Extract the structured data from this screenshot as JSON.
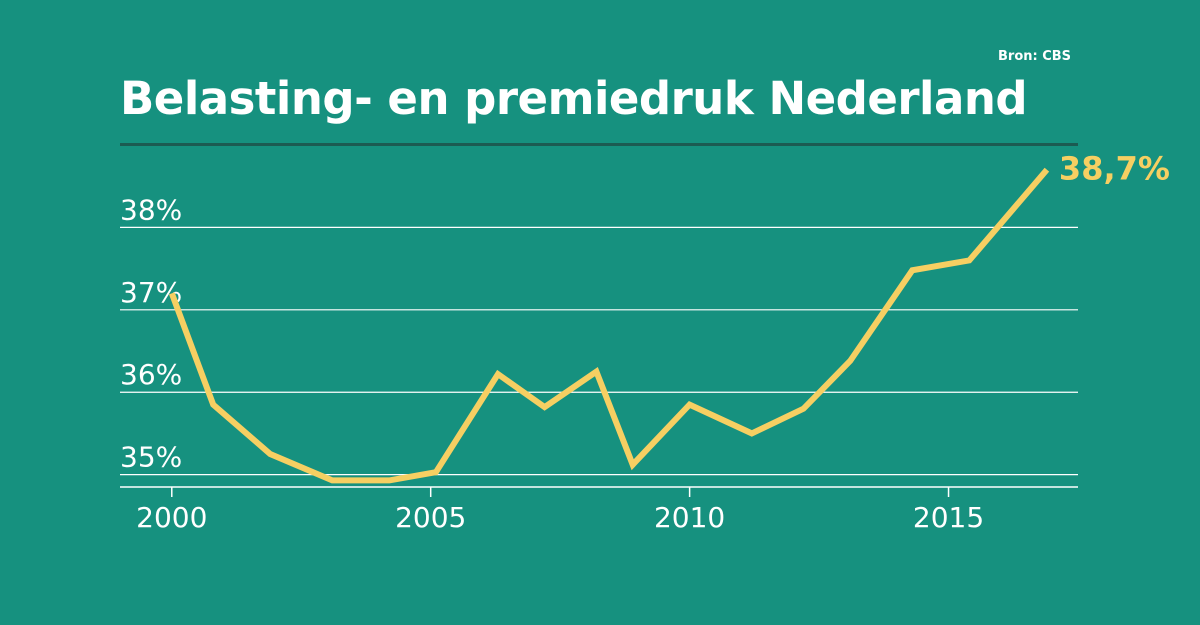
{
  "source": "Bron: CBS",
  "chart_data": {
    "type": "line",
    "title": "Belasting- en premiedruk Nederland",
    "xlabel": "",
    "ylabel": "",
    "xlim": [
      1999,
      2017.5
    ],
    "ylim": [
      34.85,
      39.0
    ],
    "yticks": [
      35,
      36,
      37,
      38
    ],
    "ytick_labels": [
      "35%",
      "36%",
      "37%",
      "38%"
    ],
    "xticks": [
      2000,
      2005,
      2010,
      2015
    ],
    "xtick_labels": [
      "2000",
      "2005",
      "2010",
      "2015"
    ],
    "grid": "horizontal",
    "line_color": "#f6cf62",
    "end_label": "38,7%",
    "series": [
      {
        "x": [
          2000,
          2000.8,
          2001.9,
          2003.1,
          2004.2,
          2005.1,
          2006.3,
          2007.2,
          2008.2,
          2008.9,
          2010,
          2011.2,
          2012.2,
          2013.1,
          2014.3,
          2015.4,
          2016.9
        ],
        "values": [
          37.2,
          35.85,
          35.25,
          34.93,
          34.93,
          35.03,
          36.22,
          35.82,
          36.25,
          35.12,
          35.85,
          35.5,
          35.8,
          36.38,
          37.48,
          37.6,
          38.7
        ]
      }
    ]
  }
}
